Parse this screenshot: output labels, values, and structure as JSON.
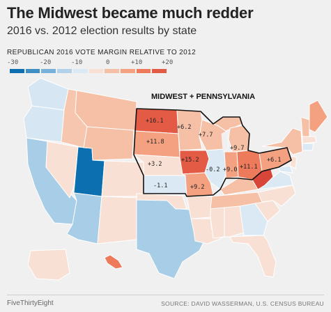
{
  "title": "The Midwest became much redder",
  "subtitle": "2016 vs. 2012 election results by state",
  "legend": {
    "title": "REPUBLICAN 2016 VOTE MARGIN RELATIVE TO 2012",
    "ticks": [
      "-30",
      "-20",
      "-10",
      "0",
      "+10",
      "+20"
    ],
    "colors": [
      "#0b6fb0",
      "#3d8fc4",
      "#78b1d9",
      "#b1d2ea",
      "#dbe9f4",
      "#f9e0d5",
      "#f6c0a6",
      "#f3a181",
      "#ed7a5b",
      "#e35a45"
    ]
  },
  "callout": "MIDWEST + PENNSYLVANIA",
  "chart_data": {
    "type": "map",
    "title": "The Midwest became much redder",
    "subtitle": "2016 vs. 2012 election results by state",
    "legend_title": "REPUBLICAN 2016 VOTE MARGIN RELATIVE TO 2012",
    "scale_ticks": [
      -30,
      -20,
      -10,
      0,
      10,
      20
    ],
    "highlighted_region": "MIDWEST + PENNSYLVANIA",
    "labeled_states": [
      {
        "label": "+16.1",
        "value": 16.1
      },
      {
        "label": "+6.2",
        "value": 6.2
      },
      {
        "label": "+7.7",
        "value": 7.7
      },
      {
        "label": "+9.7",
        "value": 9.7
      },
      {
        "label": "+11.8",
        "value": 11.8
      },
      {
        "label": "+15.2",
        "value": 15.2
      },
      {
        "label": "+3.2",
        "value": 3.2
      },
      {
        "label": "-0.2",
        "value": -0.2
      },
      {
        "label": "+9.0",
        "value": 9.0
      },
      {
        "label": "+11.1",
        "value": 11.1
      },
      {
        "label": "+6.1",
        "value": 6.1
      },
      {
        "label": "-1.1",
        "value": -1.1
      },
      {
        "label": "+9.2",
        "value": 9.2
      }
    ]
  },
  "footer": {
    "brand": "FiveThirtyEight",
    "source": "SOURCE: DAVID WASSERMAN, U.S. CENSUS BUREAU"
  }
}
